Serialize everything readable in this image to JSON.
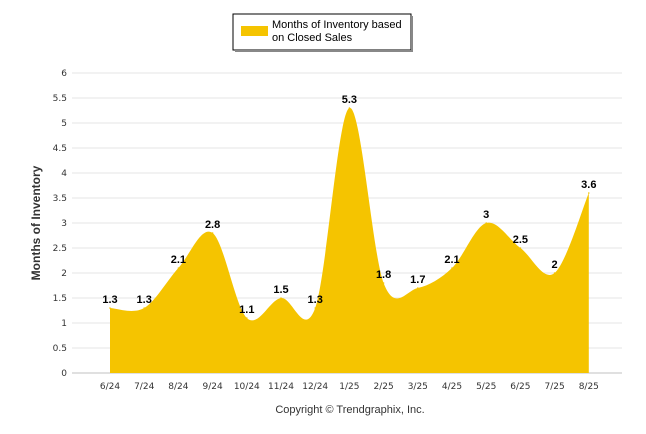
{
  "chart_data": {
    "type": "area",
    "categories": [
      "6/24",
      "7/24",
      "8/24",
      "9/24",
      "10/24",
      "11/24",
      "12/24",
      "1/25",
      "2/25",
      "3/25",
      "4/25",
      "5/25",
      "6/25",
      "7/25",
      "8/25"
    ],
    "series": [
      {
        "name": "Months of Inventory based on Closed Sales",
        "values": [
          1.3,
          1.3,
          2.1,
          2.8,
          1.1,
          1.5,
          1.3,
          5.3,
          1.8,
          1.7,
          2.1,
          3,
          2.5,
          2,
          3.6
        ],
        "labels": [
          "1.3",
          "1.3",
          "2.1",
          "2.8",
          "1.1",
          "1.5",
          "1.3",
          "5.3",
          "1.8",
          "1.7",
          "2.1",
          "3",
          "2.5",
          "2",
          "3.6"
        ],
        "color": "#f5c400"
      }
    ],
    "yticks": [
      "0",
      "0.5",
      "1",
      "1.5",
      "2",
      "2.5",
      "3",
      "3.5",
      "4",
      "4.5",
      "5",
      "5.5",
      "6"
    ],
    "ylabel": "Months of Inventory",
    "xlabel": "",
    "ylim": [
      0,
      6
    ],
    "grid": true,
    "legend_position": "top",
    "legend_lines": [
      "Months of Inventory based",
      "on Closed Sales"
    ]
  },
  "footer": {
    "copyright": "Copyright © Trendgraphix, Inc."
  }
}
